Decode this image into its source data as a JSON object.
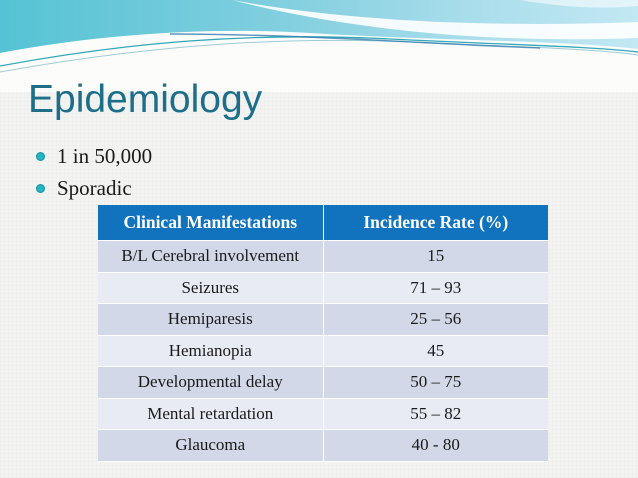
{
  "slide": {
    "title": "Epidemiology",
    "bullets": [
      "1 in 50,000",
      "Sporadic"
    ]
  },
  "table": {
    "headers": [
      "Clinical Manifestations",
      "Incidence Rate (%)"
    ],
    "rows": [
      [
        "B/L Cerebral involvement",
        "15"
      ],
      [
        "Seizures",
        "71 – 93"
      ],
      [
        "Hemiparesis",
        "25 – 56"
      ],
      [
        "Hemianopia",
        "45"
      ],
      [
        "Developmental delay",
        "50 – 75"
      ],
      [
        "Mental retardation",
        "55 – 82"
      ],
      [
        "Glaucoma",
        "40 - 80"
      ]
    ]
  },
  "colors": {
    "table_header_bg": "#1173BD",
    "row_odd": "#D2D8E7",
    "row_even": "#E8EBF3",
    "title": "#1C6E89",
    "bullet_dot": "#25B4C5",
    "band_teal_left": "#55C3D4",
    "band_teal_right": "#C2E8F3"
  }
}
